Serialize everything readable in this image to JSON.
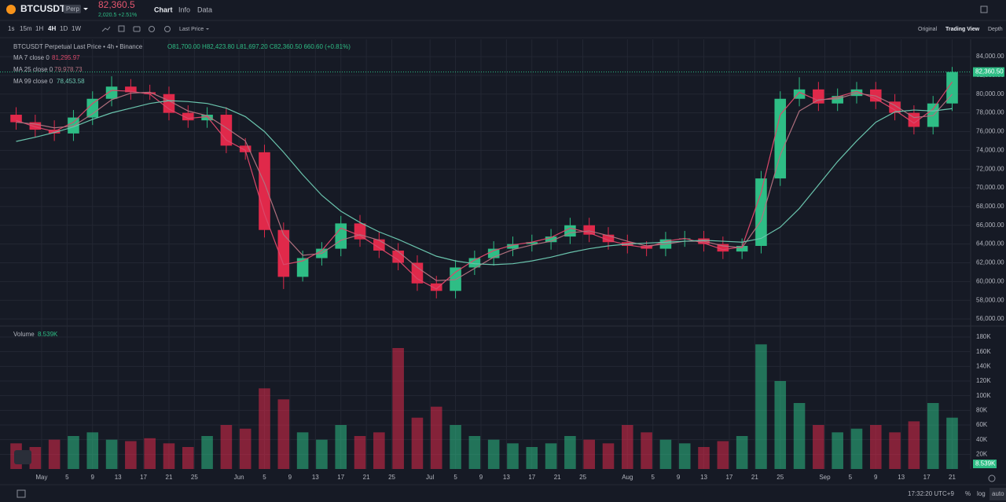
{
  "header": {
    "symbol": "BTCUSDT",
    "badge": "Perp",
    "price": "82,360.5",
    "change": "2,020.5 +2.51%",
    "tabs": [
      "Chart",
      "Info",
      "Data"
    ]
  },
  "toolbar": {
    "intervals": [
      "1s",
      "15m",
      "1H",
      "4H",
      "1D",
      "1W"
    ],
    "price_source": "Last Price",
    "views": [
      "Original",
      "Trading View",
      "Depth"
    ]
  },
  "legend": {
    "title": "BTCUSDT Perpetual Last Price • 4h • Binance",
    "ohlc": "O81,700.00 H82,423.80 L81,697.20 C82,360.50 660.60 (+0.81%)"
  },
  "footer": {
    "time": "17:32:20 UTC+9",
    "buttons": [
      "%",
      "log",
      "auto"
    ]
  },
  "chart_data": {
    "type": "candlestick",
    "up_color": "#2ebd85",
    "down_color": "#e0294a",
    "x": [
      -4,
      -1,
      2,
      5,
      8,
      11,
      14,
      17,
      20,
      23,
      26,
      29,
      32,
      35,
      38,
      41,
      44,
      47,
      50,
      53,
      56,
      59,
      62,
      65,
      68,
      71,
      74,
      77,
      80,
      83,
      86,
      89,
      92,
      95,
      98,
      101,
      104,
      107,
      110,
      113,
      116,
      119,
      122,
      125,
      128,
      131,
      134,
      137,
      140,
      143
    ],
    "open": [
      77800,
      77000,
      76200,
      75800,
      77500,
      79500,
      80800,
      80200,
      80000,
      78000,
      77200,
      77800,
      74500,
      73800,
      65500,
      60500,
      62500,
      63500,
      66200,
      64500,
      63300,
      62000,
      59800,
      59000,
      61500,
      62500,
      63500,
      64000,
      64200,
      64800,
      66000,
      65000,
      64200,
      63800,
      63500,
      64500,
      64600,
      64000,
      63200,
      63800,
      71000,
      79500,
      80500,
      79000,
      79800,
      80500,
      79200,
      78000,
      76500,
      79000
    ],
    "high": [
      78600,
      77800,
      77200,
      78300,
      80300,
      81900,
      81600,
      81000,
      80800,
      78800,
      78600,
      78600,
      75300,
      74600,
      66300,
      63300,
      64200,
      67000,
      67100,
      65300,
      64100,
      62800,
      60600,
      62300,
      63300,
      64300,
      64800,
      65000,
      65600,
      66800,
      66800,
      65800,
      65000,
      64300,
      65300,
      65400,
      65400,
      64800,
      64600,
      71800,
      80300,
      81800,
      81300,
      80600,
      81300,
      81300,
      80000,
      78800,
      79800,
      82900
    ],
    "low": [
      76200,
      75400,
      75000,
      75000,
      76700,
      78700,
      79400,
      79400,
      77200,
      76400,
      76400,
      73700,
      73000,
      64700,
      59200,
      60000,
      61700,
      62700,
      63700,
      62500,
      61200,
      59000,
      58200,
      58200,
      60700,
      61700,
      62700,
      63200,
      63400,
      64000,
      64200,
      63400,
      63000,
      62700,
      62700,
      63700,
      63200,
      62400,
      62400,
      63000,
      70200,
      78700,
      78200,
      78200,
      79000,
      78400,
      77200,
      75700,
      75700,
      78200
    ],
    "close": [
      77000,
      76200,
      75800,
      77500,
      79500,
      80800,
      80200,
      80000,
      78000,
      77200,
      77800,
      74500,
      73800,
      65500,
      60500,
      62500,
      63500,
      66200,
      64500,
      63300,
      62000,
      59800,
      59000,
      61500,
      62500,
      63500,
      64000,
      64200,
      64800,
      66000,
      65000,
      64200,
      63800,
      63500,
      64500,
      64600,
      64000,
      63200,
      63800,
      71000,
      79500,
      80500,
      79000,
      79800,
      80500,
      79200,
      78000,
      76500,
      79000,
      82360.5
    ],
    "last_price_label": "82,360.50",
    "ma": [
      {
        "name": "MA 7 close 0",
        "value_label": "81,295.97",
        "color": "#d9486a",
        "values": [
          77200,
          76500,
          76000,
          77000,
          79000,
          80400,
          80300,
          80000,
          78400,
          77400,
          77600,
          75100,
          74000,
          67200,
          61800,
          62200,
          63300,
          65700,
          64900,
          63600,
          62300,
          60300,
          59200,
          61000,
          62300,
          63300,
          63900,
          64200,
          64700,
          65700,
          65200,
          64400,
          63900,
          63600,
          64300,
          64600,
          64100,
          63400,
          63700,
          69500,
          77800,
          80200,
          79300,
          79700,
          80300,
          79500,
          78300,
          76900,
          78400,
          81295.97
        ]
      },
      {
        "name": "MA 25 close 0",
        "value_label": "79,978.73",
        "color": "#b0707e",
        "values": [
          77000,
          76800,
          76400,
          76600,
          77900,
          79400,
          80100,
          80200,
          79300,
          78200,
          77700,
          76400,
          75000,
          70500,
          65000,
          62800,
          63000,
          64400,
          65000,
          64400,
          63200,
          61500,
          60100,
          60200,
          61400,
          62600,
          63400,
          63900,
          64300,
          65200,
          65400,
          64900,
          64300,
          63800,
          64000,
          64300,
          64300,
          63800,
          63600,
          66500,
          73500,
          78200,
          79400,
          79500,
          80100,
          79800,
          78800,
          77500,
          77700,
          79978.73
        ]
      },
      {
        "name": "MA 99 close 0",
        "value_label": "78,453.58",
        "color": "#6ac4ad",
        "values": [
          74950,
          75400,
          75900,
          76500,
          77300,
          78000,
          78500,
          79000,
          79300,
          79200,
          79000,
          78500,
          77600,
          76000,
          73800,
          71400,
          69200,
          67500,
          66300,
          65300,
          64500,
          63600,
          62700,
          62200,
          61900,
          61800,
          61900,
          62200,
          62600,
          63100,
          63500,
          63800,
          64000,
          64100,
          64200,
          64300,
          64400,
          64300,
          64200,
          64600,
          65800,
          67800,
          70300,
          72800,
          75000,
          77000,
          78100,
          78300,
          78200,
          78453.58
        ]
      }
    ],
    "xlim": [
      -5.3,
      145.9
    ],
    "xticks": [
      {
        "value": 0,
        "label": "May"
      },
      {
        "value": 4,
        "label": "5"
      },
      {
        "value": 8,
        "label": "9"
      },
      {
        "value": 12,
        "label": "13"
      },
      {
        "value": 16,
        "label": "17"
      },
      {
        "value": 20,
        "label": "21"
      },
      {
        "value": 24,
        "label": "25"
      },
      {
        "value": 31,
        "label": "Jun"
      },
      {
        "value": 35,
        "label": "5"
      },
      {
        "value": 39,
        "label": "9"
      },
      {
        "value": 43,
        "label": "13"
      },
      {
        "value": 47,
        "label": "17"
      },
      {
        "value": 51,
        "label": "21"
      },
      {
        "value": 55,
        "label": "25"
      },
      {
        "value": 61,
        "label": "Jul"
      },
      {
        "value": 65,
        "label": "5"
      },
      {
        "value": 69,
        "label": "9"
      },
      {
        "value": 73,
        "label": "13"
      },
      {
        "value": 77,
        "label": "17"
      },
      {
        "value": 81,
        "label": "21"
      },
      {
        "value": 85,
        "label": "25"
      },
      {
        "value": 92,
        "label": "Aug"
      },
      {
        "value": 96,
        "label": "5"
      },
      {
        "value": 100,
        "label": "9"
      },
      {
        "value": 104,
        "label": "13"
      },
      {
        "value": 108,
        "label": "17"
      },
      {
        "value": 112,
        "label": "21"
      },
      {
        "value": 116,
        "label": "25"
      },
      {
        "value": 123,
        "label": "Sep"
      },
      {
        "value": 127,
        "label": "5"
      },
      {
        "value": 131,
        "label": "9"
      },
      {
        "value": 135,
        "label": "13"
      },
      {
        "value": 139,
        "label": "17"
      },
      {
        "value": 143,
        "label": "21"
      }
    ],
    "ylim": [
      55250,
      85850
    ],
    "yticks": [
      {
        "value": 56000,
        "label": "56,000.00"
      },
      {
        "value": 58000,
        "label": "58,000.00"
      },
      {
        "value": 60000,
        "label": "60,000.00"
      },
      {
        "value": 62000,
        "label": "62,000.00"
      },
      {
        "value": 64000,
        "label": "64,000.00"
      },
      {
        "value": 66000,
        "label": "66,000.00"
      },
      {
        "value": 68000,
        "label": "68,000.00"
      },
      {
        "value": 70000,
        "label": "70,000.00"
      },
      {
        "value": 72000,
        "label": "72,000.00"
      },
      {
        "value": 74000,
        "label": "74,000.00"
      },
      {
        "value": 76000,
        "label": "76,000.00"
      },
      {
        "value": 78000,
        "label": "78,000.00"
      },
      {
        "value": 80000,
        "label": "80,000.00"
      },
      {
        "value": 82000,
        "label": "82,000.00"
      },
      {
        "value": 84000,
        "label": "84,000.00"
      }
    ],
    "volume": {
      "name": "Volume",
      "value_label": "8.539K",
      "values": [
        35000,
        30000,
        40000,
        45000,
        50000,
        40000,
        38000,
        42000,
        35000,
        30000,
        45000,
        60000,
        55000,
        110000,
        95000,
        50000,
        40000,
        60000,
        45000,
        50000,
        165000,
        70000,
        85000,
        60000,
        45000,
        40000,
        35000,
        30000,
        35000,
        45000,
        40000,
        35000,
        60000,
        50000,
        40000,
        35000,
        30000,
        38000,
        45000,
        170000,
        120000,
        90000,
        60000,
        50000,
        55000,
        60000,
        50000,
        65000,
        90000,
        70000
      ],
      "ylim": [
        0,
        195000
      ],
      "yticks": [
        {
          "value": 20000,
          "label": "20K"
        },
        {
          "value": 40000,
          "label": "40K"
        },
        {
          "value": 60000,
          "label": "60K"
        },
        {
          "value": 80000,
          "label": "80K"
        },
        {
          "value": 100000,
          "label": "100K"
        },
        {
          "value": 120000,
          "label": "120K"
        },
        {
          "value": 140000,
          "label": "140K"
        },
        {
          "value": 160000,
          "label": "160K"
        },
        {
          "value": 180000,
          "label": "180K"
        }
      ]
    },
    "grid": true
  }
}
